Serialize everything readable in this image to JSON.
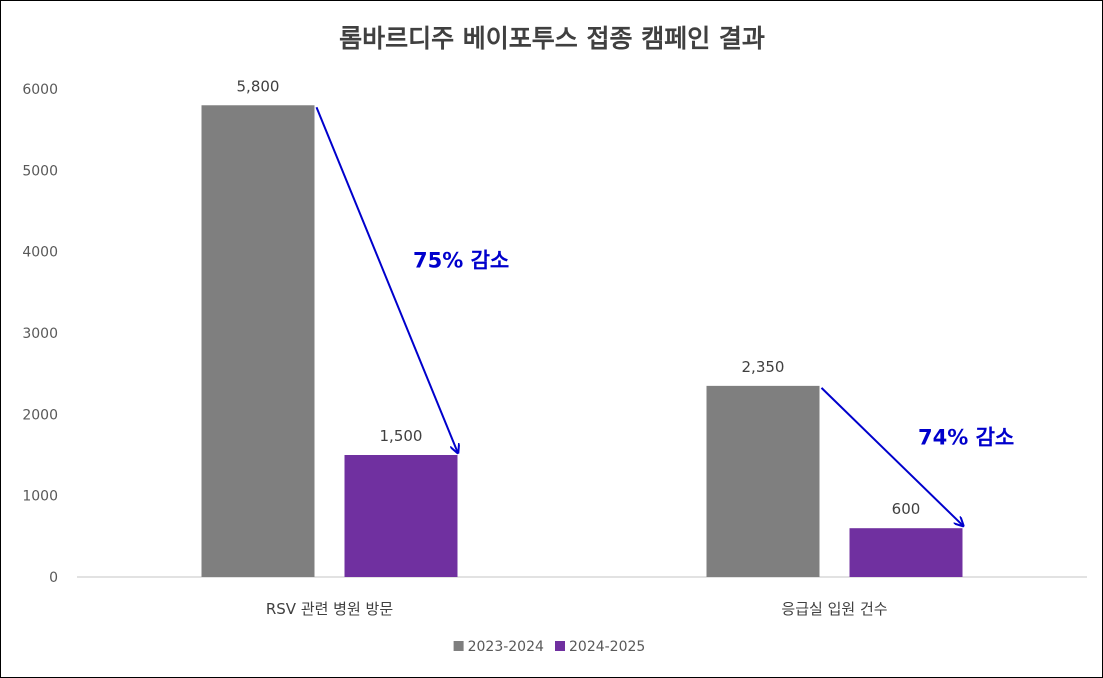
{
  "chart_data": {
    "type": "bar",
    "title": "롬바르디주 베이포투스 접종 캠페인 결과",
    "categories": [
      "RSV 관련 병원 방문",
      "응급실 입원 건수"
    ],
    "series": [
      {
        "name": "2023-2024",
        "values": [
          5800,
          2350
        ],
        "labels": [
          "5,800",
          "2,350"
        ],
        "color": "#7f7f7f"
      },
      {
        "name": "2024-2025",
        "values": [
          1500,
          600
        ],
        "labels": [
          "1,500",
          "600"
        ],
        "color": "#7030a0"
      }
    ],
    "ylim": [
      0,
      6000
    ],
    "yticks": [
      "0",
      "1000",
      "2000",
      "3000",
      "4000",
      "5000",
      "6000"
    ],
    "grid": false,
    "legend_position": "bottom",
    "annotations": [
      {
        "category": "RSV 관련 병원 방문",
        "text": "75% 감소"
      },
      {
        "category": "응급실 입원 건수",
        "text": "74% 감소"
      }
    ],
    "annotation_color": "#0000cc",
    "axis_color": "#d9d9d9"
  }
}
